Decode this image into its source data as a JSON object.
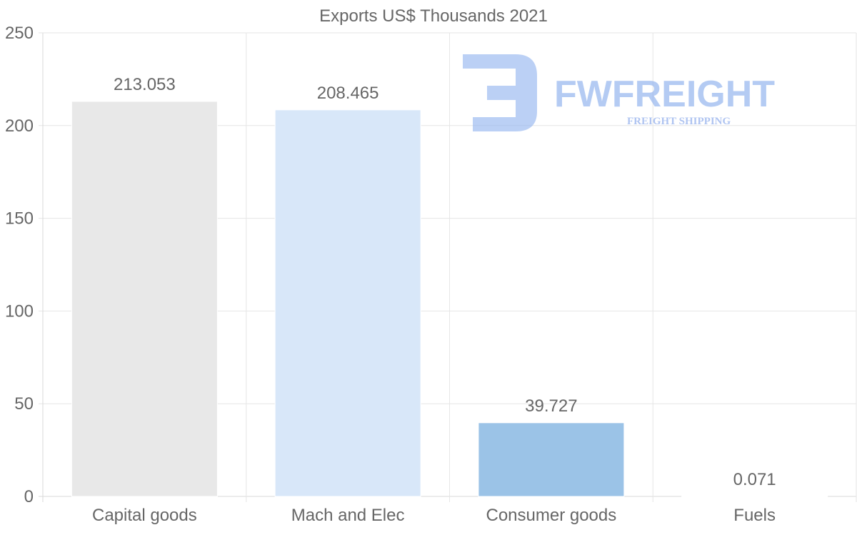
{
  "chart_data": {
    "type": "bar",
    "title": "Exports US$ Thousands 2021",
    "categories": [
      "Capital goods",
      "Mach and Elec",
      "Consumer goods",
      "Fuels"
    ],
    "values": [
      213.053,
      208.465,
      39.727,
      0.071
    ],
    "value_labels": [
      "213.053",
      "208.465",
      "39.727",
      "0.071"
    ],
    "colors": [
      "#e8e8e8",
      "#d8e7f9",
      "#9bc3e7",
      "#9bc3e7"
    ],
    "ylim": [
      0,
      250
    ],
    "yticks": [
      0,
      50,
      100,
      150,
      200,
      250
    ],
    "xlabel": "",
    "ylabel": "",
    "grid": true
  },
  "watermark": {
    "brand": "FWFREIGHT",
    "tagline": "FREIGHT SHIPPING",
    "color": "#8db0ee"
  }
}
